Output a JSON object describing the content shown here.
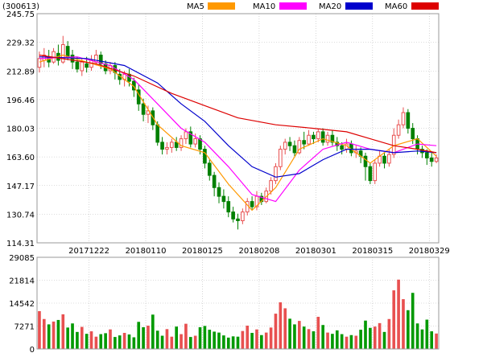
{
  "header": {
    "code_label": "(300613)"
  },
  "legend": [
    {
      "label": "MA5",
      "color": "#ff9900"
    },
    {
      "label": "MA10",
      "color": "#ff00ff"
    },
    {
      "label": "MA20",
      "color": "#0000cc"
    },
    {
      "label": "MA60",
      "color": "#dd0000"
    }
  ],
  "colors": {
    "up": "#e85050",
    "down": "#008000",
    "volume_up": "#e85050",
    "volume_down": "#009900",
    "grid": "#bbbbbb"
  },
  "chart_data": {
    "type": "candlestick",
    "price_axis": {
      "min": 114.31,
      "max": 245.75,
      "ticks": [
        "245.75",
        "229.32",
        "212.89",
        "196.46",
        "180.03",
        "163.60",
        "147.17",
        "130.74",
        "114.31"
      ]
    },
    "volume_axis": {
      "min": 0,
      "max": 29085,
      "ticks": [
        "29085",
        "21814",
        "14542",
        "7271",
        "0"
      ]
    },
    "date_ticks": [
      {
        "index": 11,
        "label": "20171222"
      },
      {
        "index": 23,
        "label": "20180110"
      },
      {
        "index": 35,
        "label": "20180125"
      },
      {
        "index": 47,
        "label": "20180208"
      },
      {
        "index": 59,
        "label": "20180301"
      },
      {
        "index": 71,
        "label": "20180315"
      },
      {
        "index": 83,
        "label": "20180329"
      }
    ],
    "candles": [
      [
        215,
        220,
        212,
        224
      ],
      [
        219,
        222,
        215,
        226
      ],
      [
        221,
        218,
        215,
        225
      ],
      [
        218,
        224,
        217,
        226
      ],
      [
        223,
        219,
        216,
        228
      ],
      [
        218,
        228,
        217,
        233
      ],
      [
        227,
        221,
        219,
        230
      ],
      [
        222,
        218,
        214,
        225
      ],
      [
        218,
        214,
        212,
        221
      ],
      [
        213,
        218,
        210,
        220
      ],
      [
        217,
        215,
        212,
        221
      ],
      [
        215,
        219,
        213,
        222
      ],
      [
        218,
        222,
        216,
        225
      ],
      [
        222,
        217,
        214,
        224
      ],
      [
        217,
        213,
        211,
        219
      ],
      [
        213,
        216,
        211,
        218
      ],
      [
        216,
        212,
        208,
        218
      ],
      [
        211,
        208,
        205,
        214
      ],
      [
        208,
        211,
        204,
        213
      ],
      [
        211,
        207,
        204,
        214
      ],
      [
        207,
        202,
        198,
        209
      ],
      [
        202,
        194,
        190,
        205
      ],
      [
        194,
        188,
        184,
        197
      ],
      [
        188,
        190,
        183,
        193
      ],
      [
        190,
        182,
        179,
        192
      ],
      [
        182,
        172,
        170,
        184
      ],
      [
        172,
        168,
        165,
        175
      ],
      [
        168,
        169,
        165,
        172
      ],
      [
        169,
        172,
        166,
        174
      ],
      [
        172,
        169,
        167,
        175
      ],
      [
        169,
        174,
        167,
        176
      ],
      [
        174,
        178,
        171,
        180
      ],
      [
        178,
        171,
        169,
        181
      ],
      [
        171,
        174,
        169,
        177
      ],
      [
        174,
        168,
        165,
        176
      ],
      [
        168,
        160,
        157,
        170
      ],
      [
        160,
        153,
        150,
        162
      ],
      [
        153,
        146,
        141,
        155
      ],
      [
        146,
        141,
        137,
        149
      ],
      [
        141,
        138,
        134,
        145
      ],
      [
        138,
        132,
        129,
        141
      ],
      [
        132,
        128,
        126,
        135
      ],
      [
        128,
        127,
        122,
        131
      ],
      [
        127,
        132,
        125,
        134
      ],
      [
        132,
        138,
        130,
        140
      ],
      [
        138,
        135,
        133,
        141
      ],
      [
        135,
        141,
        133,
        144
      ],
      [
        141,
        138,
        136,
        143
      ],
      [
        138,
        144,
        137,
        146
      ],
      [
        144,
        150,
        142,
        152
      ],
      [
        150,
        158,
        148,
        160
      ],
      [
        158,
        168,
        156,
        170
      ],
      [
        168,
        172,
        165,
        174
      ],
      [
        172,
        170,
        167,
        175
      ],
      [
        170,
        166,
        164,
        173
      ],
      [
        166,
        173,
        165,
        175
      ],
      [
        173,
        171,
        168,
        178
      ],
      [
        171,
        176,
        170,
        179
      ],
      [
        176,
        174,
        171,
        178
      ],
      [
        174,
        178,
        172,
        180
      ],
      [
        178,
        172,
        170,
        180
      ],
      [
        172,
        176,
        170,
        178
      ],
      [
        176,
        172,
        170,
        179
      ],
      [
        172,
        170,
        167,
        175
      ],
      [
        170,
        168,
        165,
        172
      ],
      [
        168,
        171,
        166,
        174
      ],
      [
        171,
        166,
        164,
        173
      ],
      [
        166,
        167,
        163,
        170
      ],
      [
        167,
        164,
        160,
        169
      ],
      [
        164,
        158,
        150,
        166
      ],
      [
        158,
        150,
        148,
        160
      ],
      [
        150,
        160,
        148,
        162
      ],
      [
        160,
        164,
        158,
        167
      ],
      [
        164,
        160,
        157,
        166
      ],
      [
        160,
        165,
        158,
        168
      ],
      [
        165,
        176,
        163,
        180
      ],
      [
        176,
        182,
        174,
        185
      ],
      [
        182,
        189,
        180,
        192
      ],
      [
        189,
        180,
        177,
        191
      ],
      [
        180,
        174,
        171,
        183
      ],
      [
        174,
        168,
        165,
        176
      ],
      [
        168,
        166,
        163,
        170
      ],
      [
        166,
        163,
        159,
        168
      ],
      [
        163,
        161,
        158,
        166
      ],
      [
        161,
        163,
        160,
        165
      ]
    ],
    "ma": [
      {
        "name": "MA5",
        "color": "#ff9900",
        "values": [
          [
            0,
            218
          ],
          [
            5,
            222
          ],
          [
            10,
            218
          ],
          [
            15,
            214
          ],
          [
            20,
            204
          ],
          [
            25,
            182
          ],
          [
            30,
            170
          ],
          [
            35,
            166
          ],
          [
            40,
            148
          ],
          [
            45,
            133
          ],
          [
            50,
            146
          ],
          [
            55,
            168
          ],
          [
            60,
            174
          ],
          [
            65,
            170
          ],
          [
            70,
            160
          ],
          [
            75,
            170
          ],
          [
            80,
            174
          ],
          [
            84,
            164
          ]
        ]
      },
      {
        "name": "MA10",
        "color": "#ff00ff",
        "values": [
          [
            0,
            220
          ],
          [
            8,
            221
          ],
          [
            15,
            216
          ],
          [
            20,
            208
          ],
          [
            25,
            194
          ],
          [
            30,
            180
          ],
          [
            35,
            172
          ],
          [
            40,
            158
          ],
          [
            45,
            142
          ],
          [
            50,
            138
          ],
          [
            55,
            156
          ],
          [
            60,
            168
          ],
          [
            65,
            172
          ],
          [
            70,
            168
          ],
          [
            75,
            166
          ],
          [
            80,
            171
          ],
          [
            84,
            170
          ]
        ]
      },
      {
        "name": "MA20",
        "color": "#0000cc",
        "values": [
          [
            0,
            221
          ],
          [
            10,
            220
          ],
          [
            18,
            216
          ],
          [
            25,
            206
          ],
          [
            30,
            194
          ],
          [
            35,
            184
          ],
          [
            40,
            170
          ],
          [
            45,
            158
          ],
          [
            50,
            152
          ],
          [
            55,
            154
          ],
          [
            60,
            162
          ],
          [
            65,
            168
          ],
          [
            70,
            168
          ],
          [
            75,
            166
          ],
          [
            80,
            167
          ],
          [
            84,
            166
          ]
        ]
      },
      {
        "name": "MA60",
        "color": "#dd0000",
        "values": [
          [
            0,
            222
          ],
          [
            12,
            217
          ],
          [
            20,
            210
          ],
          [
            28,
            200
          ],
          [
            35,
            193
          ],
          [
            42,
            186
          ],
          [
            50,
            182
          ],
          [
            58,
            180
          ],
          [
            65,
            178
          ],
          [
            70,
            174
          ],
          [
            75,
            170
          ],
          [
            80,
            168
          ],
          [
            84,
            166
          ]
        ]
      }
    ],
    "volumes": [
      12000,
      9500,
      7800,
      8700,
      9200,
      11000,
      6800,
      8100,
      5400,
      7000,
      4800,
      5600,
      3900,
      4700,
      5000,
      6200,
      3800,
      4300,
      5100,
      4600,
      3700,
      8600,
      6900,
      7400,
      10900,
      5800,
      4200,
      6300,
      3900,
      7100,
      4700,
      8000,
      3800,
      4200,
      6900,
      7300,
      6100,
      5500,
      5200,
      4300,
      3600,
      4000,
      3900,
      5700,
      7400,
      5100,
      6200,
      4400,
      5200,
      6800,
      11200,
      14800,
      12900,
      9600,
      7800,
      8900,
      7100,
      6300,
      5600,
      10200,
      7600,
      5200,
      4800,
      5900,
      4700,
      3900,
      4400,
      4200,
      6100,
      9000,
      6700,
      7100,
      8200,
      5400,
      9500,
      18600,
      22000,
      15800,
      12300,
      17800,
      8100,
      6200,
      9300,
      5600,
      4900
    ]
  }
}
